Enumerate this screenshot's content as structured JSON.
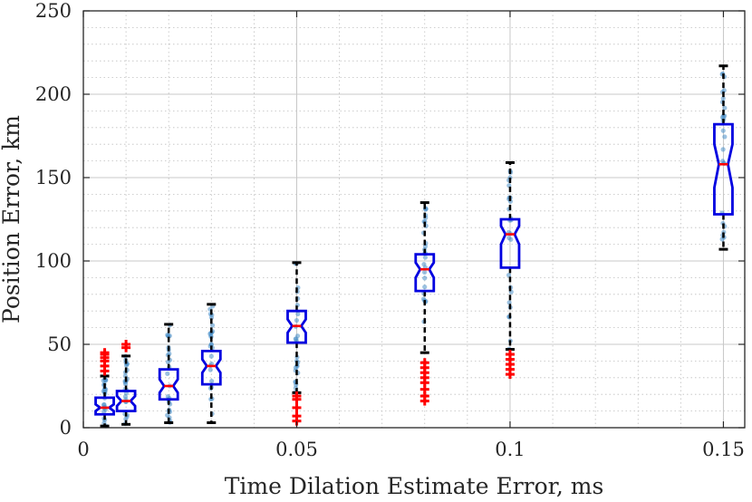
{
  "chart_data": {
    "type": "boxplot",
    "title": "",
    "xlabel": "Time Dilation Estimate Error, ms",
    "ylabel": "Position Error, km",
    "xlim": [
      0,
      0.155
    ],
    "ylim": [
      0,
      250
    ],
    "xticks": [
      0,
      0.05,
      0.1,
      0.15
    ],
    "xtick_labels": [
      "0",
      "0.05",
      "0.1",
      "0.15"
    ],
    "yticks": [
      0,
      50,
      100,
      150,
      200,
      250
    ],
    "ytick_labels": [
      "0",
      "50",
      "100",
      "150",
      "200",
      "250"
    ],
    "grid": true,
    "minor_grid": true,
    "colors": {
      "box": "#0000e0",
      "median": "#ff0000",
      "whisker": "#000000",
      "outlier": "#ff0000",
      "points": "#4a90c8",
      "grid": "#bfbfbf",
      "axis": "#262626"
    },
    "groups": [
      {
        "x": 0.005,
        "whisker_low": 1,
        "q1": 8,
        "median": 12,
        "q3": 18,
        "whisker_high": 31,
        "notch_low": 10,
        "notch_high": 14,
        "outliers": [
          34,
          37,
          40,
          42,
          44,
          45
        ]
      },
      {
        "x": 0.01,
        "whisker_low": 2,
        "q1": 10,
        "median": 16,
        "q3": 22,
        "whisker_high": 43,
        "notch_low": 13,
        "notch_high": 19,
        "outliers": [
          48,
          50
        ]
      },
      {
        "x": 0.02,
        "whisker_low": 3,
        "q1": 17,
        "median": 25,
        "q3": 35,
        "whisker_high": 62,
        "notch_low": 21,
        "notch_high": 29,
        "outliers": []
      },
      {
        "x": 0.03,
        "whisker_low": 3,
        "q1": 26,
        "median": 37,
        "q3": 46,
        "whisker_high": 74,
        "notch_low": 33,
        "notch_high": 41,
        "outliers": []
      },
      {
        "x": 0.05,
        "whisker_low": 21,
        "q1": 51,
        "median": 61,
        "q3": 70,
        "whisker_high": 99,
        "notch_low": 57,
        "notch_high": 65,
        "outliers": [
          4,
          7,
          12,
          17,
          19
        ]
      },
      {
        "x": 0.08,
        "whisker_low": 45,
        "q1": 82,
        "median": 95,
        "q3": 104,
        "whisker_high": 135,
        "notch_low": 90,
        "notch_high": 99,
        "outliers": [
          16,
          19,
          23,
          27,
          30,
          33,
          36,
          39
        ]
      },
      {
        "x": 0.1,
        "whisker_low": 47,
        "q1": 96,
        "median": 116,
        "q3": 125,
        "whisker_high": 159,
        "notch_low": 110,
        "notch_high": 121,
        "outliers": [
          32,
          35,
          38,
          41,
          44
        ]
      },
      {
        "x": 0.15,
        "whisker_low": 107,
        "q1": 128,
        "median": 158,
        "q3": 182,
        "whisker_high": 217,
        "notch_low": 144,
        "notch_high": 170,
        "outliers": []
      }
    ]
  }
}
